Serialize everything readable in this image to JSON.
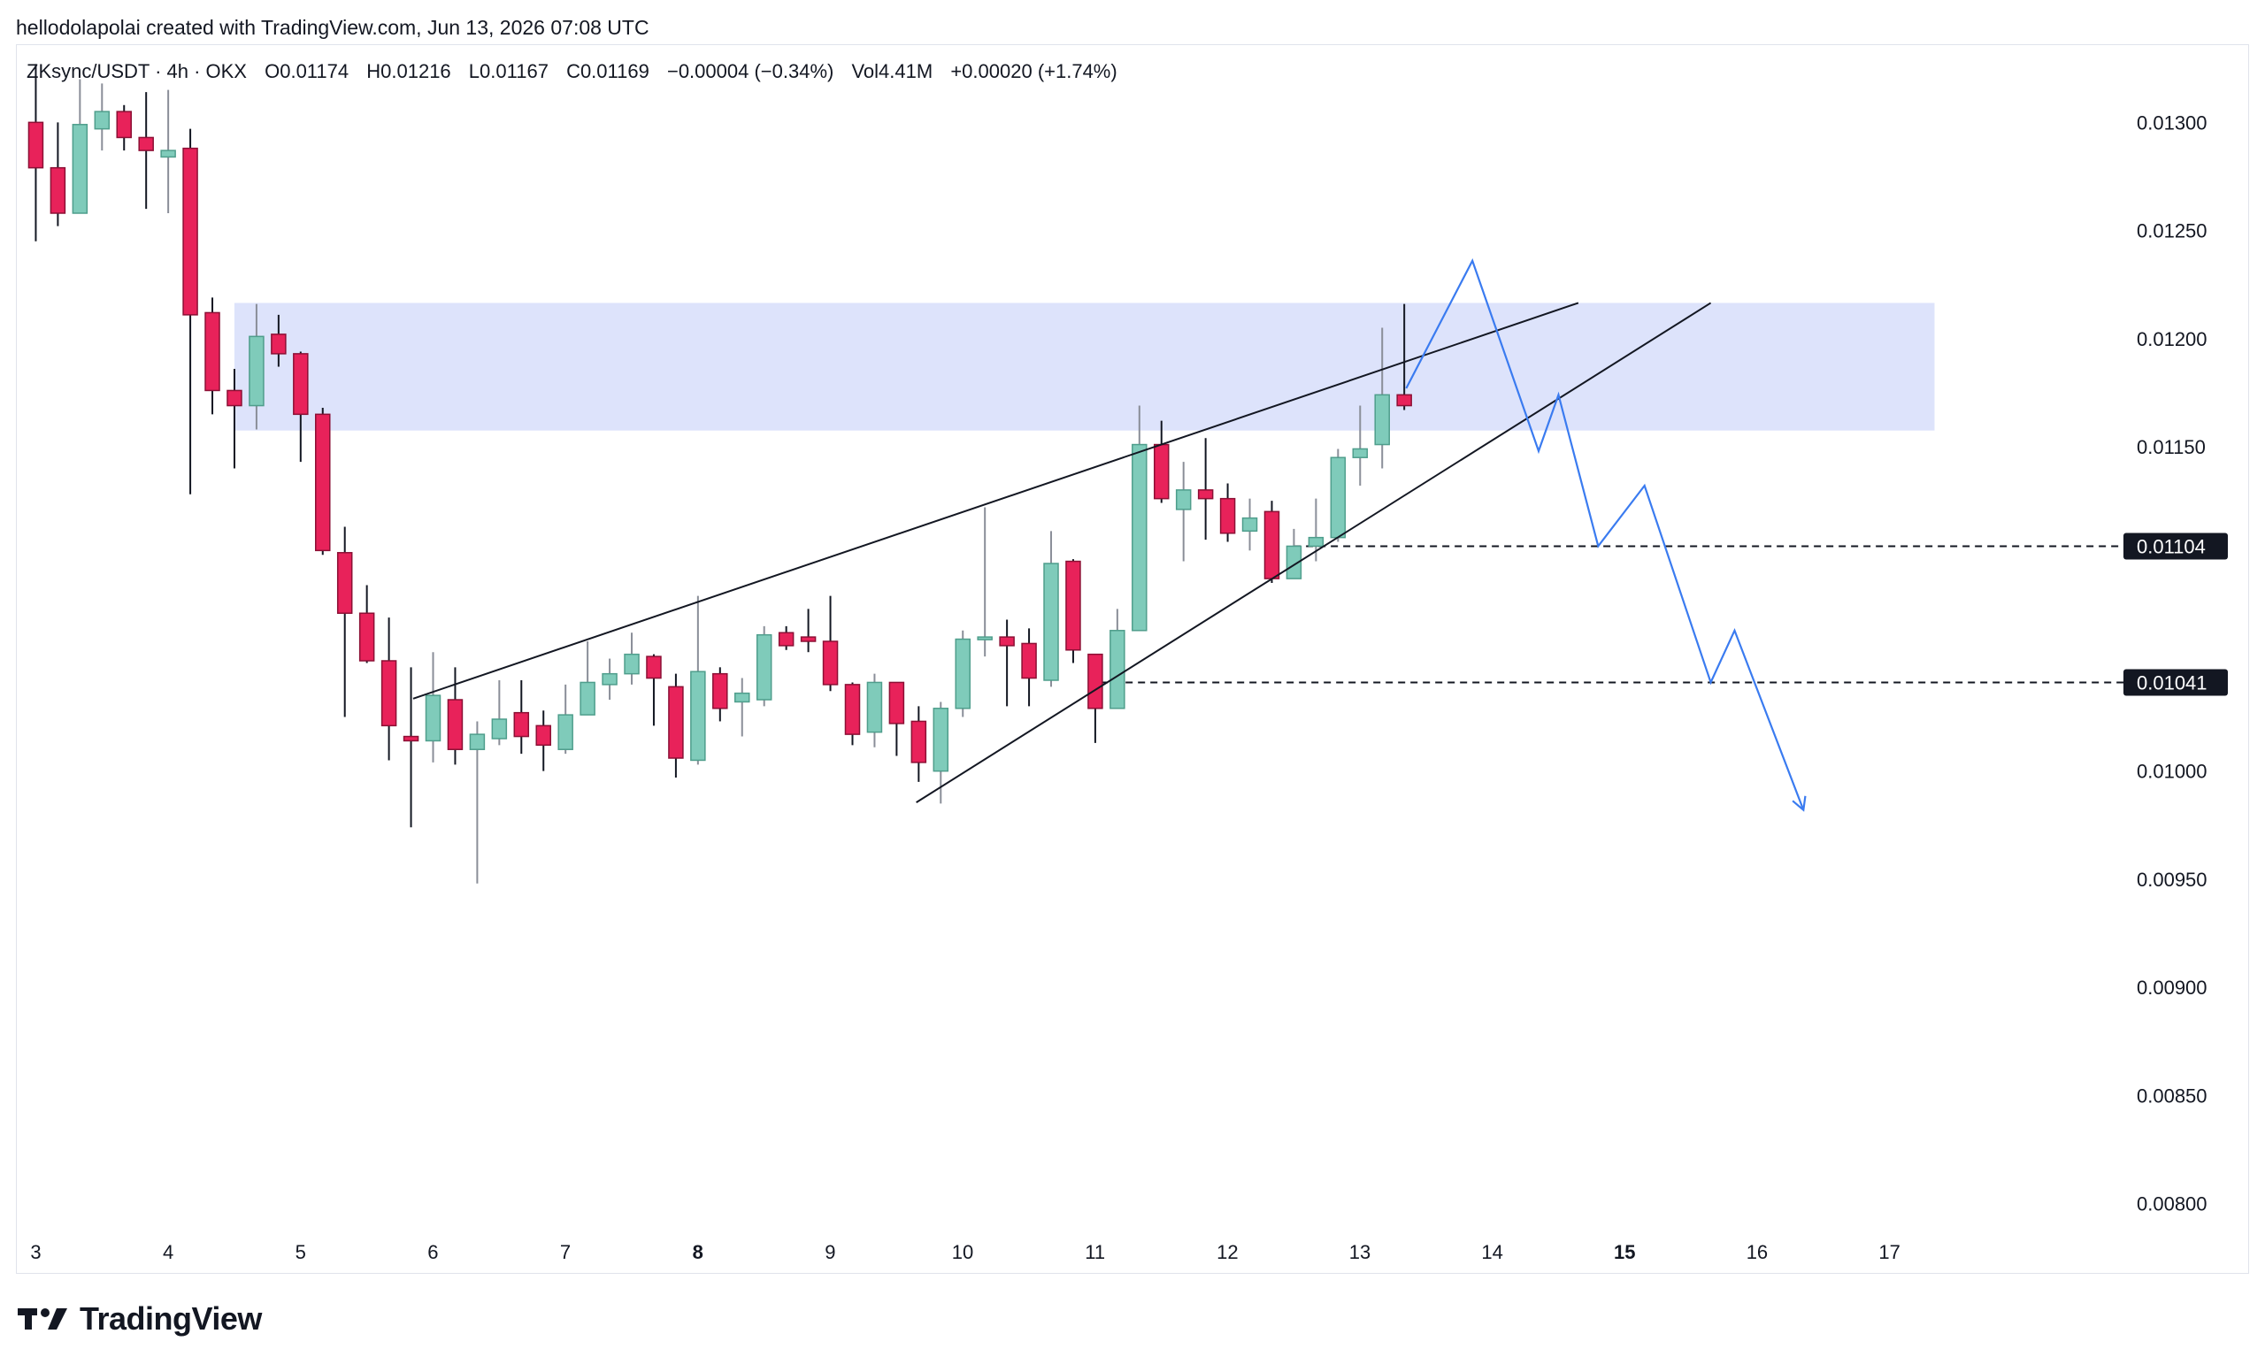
{
  "header": {
    "caption": "hellodolapolai created with TradingView.com, Jun 13, 2026 07:08 UTC"
  },
  "legend": {
    "symbol": "ZKsync/USDT · 4h · OKX",
    "open": "O0.01174",
    "high": "H0.01216",
    "low": "L0.01167",
    "close": "C0.01169",
    "change": "−0.00004 (−0.34%)",
    "volume": "Vol4.41M",
    "extra": "+0.00020 (+1.74%)"
  },
  "brand": {
    "name": "TradingView",
    "icon": "tradingview-logo-icon"
  },
  "colors": {
    "up": "#7fcbba",
    "down": "#e8225a",
    "zone": "#dde3fb",
    "projection": "#3a7bf0",
    "trendline": "#131722"
  },
  "chart_data": {
    "type": "candlestick",
    "title": "ZKsync/USDT · 4h · OKX",
    "ylim": [
      0.0079,
      0.0133
    ],
    "xlim": [
      2.85,
      18.7
    ],
    "grid": false,
    "y_ticks": [
      "0.01300",
      "0.01250",
      "0.01200",
      "0.01150",
      "0.01000",
      "0.00950",
      "0.00900",
      "0.00850",
      "0.00800"
    ],
    "y_tick_values": [
      0.013,
      0.0125,
      0.012,
      0.0115,
      0.01,
      0.0095,
      0.009,
      0.0085,
      0.008
    ],
    "x_ticks": [
      {
        "label": "3",
        "value": 3,
        "bold": false
      },
      {
        "label": "4",
        "value": 4,
        "bold": false
      },
      {
        "label": "5",
        "value": 5,
        "bold": false
      },
      {
        "label": "6",
        "value": 6,
        "bold": false
      },
      {
        "label": "7",
        "value": 7,
        "bold": false
      },
      {
        "label": "8",
        "value": 8,
        "bold": true
      },
      {
        "label": "9",
        "value": 9,
        "bold": false
      },
      {
        "label": "10",
        "value": 10,
        "bold": false
      },
      {
        "label": "11",
        "value": 11,
        "bold": false
      },
      {
        "label": "12",
        "value": 12,
        "bold": false
      },
      {
        "label": "13",
        "value": 13,
        "bold": false
      },
      {
        "label": "14",
        "value": 14,
        "bold": false
      },
      {
        "label": "15",
        "value": 15,
        "bold": true
      },
      {
        "label": "16",
        "value": 16,
        "bold": false
      },
      {
        "label": "17",
        "value": 17,
        "bold": false
      }
    ],
    "candles": [
      {
        "o": 0.013,
        "h": 0.01327,
        "l": 0.01245,
        "c": 0.01279
      },
      {
        "o": 0.01279,
        "h": 0.013,
        "l": 0.01252,
        "c": 0.01258
      },
      {
        "o": 0.01258,
        "h": 0.0132,
        "l": 0.01258,
        "c": 0.01299
      },
      {
        "o": 0.01297,
        "h": 0.01318,
        "l": 0.01287,
        "c": 0.01305
      },
      {
        "o": 0.01305,
        "h": 0.01308,
        "l": 0.01287,
        "c": 0.01293
      },
      {
        "o": 0.01293,
        "h": 0.01314,
        "l": 0.0126,
        "c": 0.01287
      },
      {
        "o": 0.01284,
        "h": 0.01315,
        "l": 0.01258,
        "c": 0.01287
      },
      {
        "o": 0.01288,
        "h": 0.01297,
        "l": 0.01128,
        "c": 0.01211
      },
      {
        "o": 0.01212,
        "h": 0.01219,
        "l": 0.01165,
        "c": 0.01176
      },
      {
        "o": 0.01176,
        "h": 0.01186,
        "l": 0.0114,
        "c": 0.01169
      },
      {
        "o": 0.01169,
        "h": 0.01216,
        "l": 0.01158,
        "c": 0.01201
      },
      {
        "o": 0.01202,
        "h": 0.01211,
        "l": 0.01187,
        "c": 0.01193
      },
      {
        "o": 0.01193,
        "h": 0.01194,
        "l": 0.01143,
        "c": 0.01165
      },
      {
        "o": 0.01165,
        "h": 0.01168,
        "l": 0.011,
        "c": 0.01102
      },
      {
        "o": 0.01101,
        "h": 0.01113,
        "l": 0.01025,
        "c": 0.01073
      },
      {
        "o": 0.01073,
        "h": 0.01086,
        "l": 0.0105,
        "c": 0.01051
      },
      {
        "o": 0.01051,
        "h": 0.01071,
        "l": 0.01005,
        "c": 0.01021
      },
      {
        "o": 0.01016,
        "h": 0.01048,
        "l": 0.00974,
        "c": 0.01014
      },
      {
        "o": 0.01014,
        "h": 0.01055,
        "l": 0.01004,
        "c": 0.01035
      },
      {
        "o": 0.01033,
        "h": 0.01048,
        "l": 0.01003,
        "c": 0.0101
      },
      {
        "o": 0.0101,
        "h": 0.01023,
        "l": 0.00948,
        "c": 0.01017
      },
      {
        "o": 0.01015,
        "h": 0.01042,
        "l": 0.01012,
        "c": 0.01024
      },
      {
        "o": 0.01027,
        "h": 0.01042,
        "l": 0.01008,
        "c": 0.01016
      },
      {
        "o": 0.01021,
        "h": 0.01028,
        "l": 0.01,
        "c": 0.01012
      },
      {
        "o": 0.0101,
        "h": 0.0104,
        "l": 0.01008,
        "c": 0.01026
      },
      {
        "o": 0.01026,
        "h": 0.0106,
        "l": 0.01026,
        "c": 0.01041
      },
      {
        "o": 0.0104,
        "h": 0.01052,
        "l": 0.01033,
        "c": 0.01045
      },
      {
        "o": 0.01045,
        "h": 0.01064,
        "l": 0.0104,
        "c": 0.01054
      },
      {
        "o": 0.01053,
        "h": 0.01054,
        "l": 0.01021,
        "c": 0.01043
      },
      {
        "o": 0.01039,
        "h": 0.01045,
        "l": 0.00997,
        "c": 0.01006
      },
      {
        "o": 0.01005,
        "h": 0.01081,
        "l": 0.01003,
        "c": 0.01046
      },
      {
        "o": 0.01045,
        "h": 0.01048,
        "l": 0.01023,
        "c": 0.01029
      },
      {
        "o": 0.01032,
        "h": 0.01043,
        "l": 0.01016,
        "c": 0.01036
      },
      {
        "o": 0.01033,
        "h": 0.01067,
        "l": 0.0103,
        "c": 0.01063
      },
      {
        "o": 0.01064,
        "h": 0.01067,
        "l": 0.01056,
        "c": 0.01058
      },
      {
        "o": 0.01062,
        "h": 0.01075,
        "l": 0.01055,
        "c": 0.0106
      },
      {
        "o": 0.0106,
        "h": 0.01081,
        "l": 0.01037,
        "c": 0.0104
      },
      {
        "o": 0.0104,
        "h": 0.01041,
        "l": 0.01012,
        "c": 0.01017
      },
      {
        "o": 0.01018,
        "h": 0.01045,
        "l": 0.01011,
        "c": 0.01041
      },
      {
        "o": 0.01041,
        "h": 0.01041,
        "l": 0.01007,
        "c": 0.01022
      },
      {
        "o": 0.01023,
        "h": 0.0103,
        "l": 0.00995,
        "c": 0.01004
      },
      {
        "o": 0.01,
        "h": 0.01032,
        "l": 0.00985,
        "c": 0.01029
      },
      {
        "o": 0.01029,
        "h": 0.01065,
        "l": 0.01025,
        "c": 0.01061
      },
      {
        "o": 0.01061,
        "h": 0.01122,
        "l": 0.01053,
        "c": 0.01062
      },
      {
        "o": 0.01062,
        "h": 0.0107,
        "l": 0.0103,
        "c": 0.01058
      },
      {
        "o": 0.01059,
        "h": 0.01066,
        "l": 0.0103,
        "c": 0.01043
      },
      {
        "o": 0.01042,
        "h": 0.01111,
        "l": 0.01039,
        "c": 0.01096
      },
      {
        "o": 0.01097,
        "h": 0.01098,
        "l": 0.0105,
        "c": 0.01056
      },
      {
        "o": 0.01054,
        "h": 0.01054,
        "l": 0.01013,
        "c": 0.01029
      },
      {
        "o": 0.01029,
        "h": 0.01075,
        "l": 0.01029,
        "c": 0.01065
      },
      {
        "o": 0.01065,
        "h": 0.01169,
        "l": 0.01065,
        "c": 0.01151
      },
      {
        "o": 0.01151,
        "h": 0.01162,
        "l": 0.01124,
        "c": 0.01126
      },
      {
        "o": 0.01121,
        "h": 0.01143,
        "l": 0.01097,
        "c": 0.0113
      },
      {
        "o": 0.0113,
        "h": 0.01154,
        "l": 0.01107,
        "c": 0.01126
      },
      {
        "o": 0.01126,
        "h": 0.01133,
        "l": 0.01106,
        "c": 0.0111
      },
      {
        "o": 0.01111,
        "h": 0.01126,
        "l": 0.01102,
        "c": 0.01117
      },
      {
        "o": 0.0112,
        "h": 0.01125,
        "l": 0.01087,
        "c": 0.01089
      },
      {
        "o": 0.01089,
        "h": 0.01112,
        "l": 0.01089,
        "c": 0.01104
      },
      {
        "o": 0.01104,
        "h": 0.01126,
        "l": 0.01097,
        "c": 0.01108
      },
      {
        "o": 0.01108,
        "h": 0.01149,
        "l": 0.01106,
        "c": 0.01145
      },
      {
        "o": 0.01145,
        "h": 0.01169,
        "l": 0.01132,
        "c": 0.01149
      },
      {
        "o": 0.01151,
        "h": 0.01205,
        "l": 0.0114,
        "c": 0.01174
      },
      {
        "o": 0.01174,
        "h": 0.01216,
        "l": 0.01167,
        "c": 0.01169
      }
    ],
    "first_candle_x": 3.0,
    "candle_step": 0.1667,
    "zone": {
      "x_start": 4.5,
      "x_end": 17.34,
      "y_low": 0.011575,
      "y_high": 0.012165
    },
    "trendlines": [
      {
        "x1": 5.85,
        "y1": 0.010335,
        "x2": 14.65,
        "y2": 0.012165
      },
      {
        "x1": 9.65,
        "y1": 0.009855,
        "x2": 15.65,
        "y2": 0.012165
      }
    ],
    "horizontal_levels": [
      {
        "label": "0.01104",
        "value": 0.01104,
        "x_start": 12.5
      },
      {
        "label": "0.01041",
        "value": 0.01041,
        "x_start": 10.95
      }
    ],
    "projection_path": [
      {
        "x": 13.35,
        "y": 0.01177
      },
      {
        "x": 13.85,
        "y": 0.01236
      },
      {
        "x": 14.35,
        "y": 0.01148
      },
      {
        "x": 14.5,
        "y": 0.01174
      },
      {
        "x": 14.8,
        "y": 0.01104
      },
      {
        "x": 15.15,
        "y": 0.01132
      },
      {
        "x": 15.65,
        "y": 0.01041
      },
      {
        "x": 15.83,
        "y": 0.01065
      },
      {
        "x": 16.35,
        "y": 0.00982
      }
    ]
  }
}
